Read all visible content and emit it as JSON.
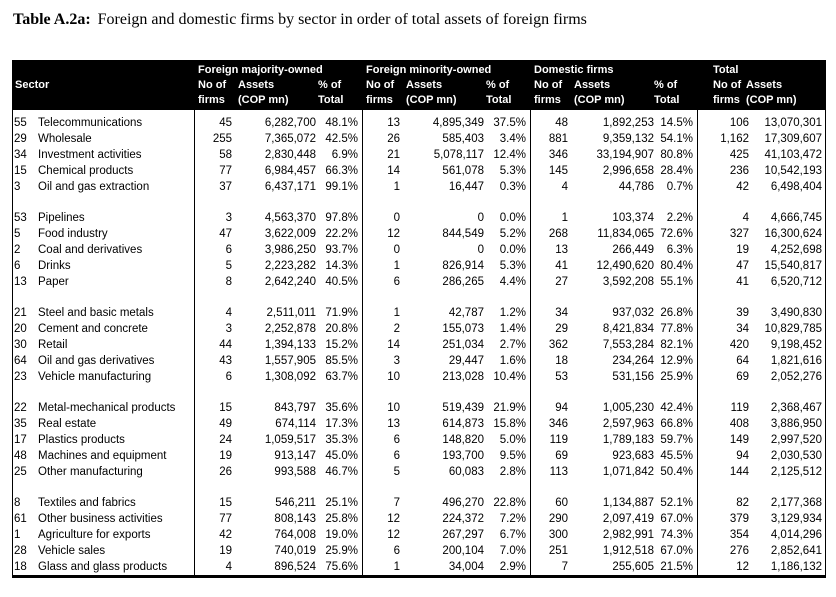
{
  "title": {
    "prefix": "Table A.2a:",
    "text": "Foreign and domestic firms by sector in order of total assets of foreign firms"
  },
  "colors": {
    "header_bg": "#000000",
    "header_text": "#ffffff",
    "body_text": "#000000",
    "background": "#ffffff"
  },
  "table": {
    "header": {
      "sector": "Sector",
      "group_titles": [
        "Foreign majority-owned",
        "Foreign minority-owned",
        "Domestic firms",
        "Total"
      ],
      "sub_top": [
        "No of",
        "Assets",
        "% of"
      ],
      "sub_bottom": [
        "firms",
        "(COP mn)",
        "Total"
      ]
    },
    "columns": [
      "Sector code",
      "Sector",
      "Foreign majority-owned No of firms",
      "Foreign majority-owned Assets (COP mn)",
      "Foreign majority-owned % of Total",
      "Foreign minority-owned No of firms",
      "Foreign minority-owned Assets (COP mn)",
      "Foreign minority-owned % of Total",
      "Domestic firms No of firms",
      "Domestic firms Assets (COP mn)",
      "Domestic firms % of Total",
      "Total No of firms",
      "Total Assets (COP mn)"
    ],
    "row_groups": [
      [
        [
          "55",
          "Telecommunications",
          "45",
          "6,282,700",
          "48.1%",
          "13",
          "4,895,349",
          "37.5%",
          "48",
          "1,892,253",
          "14.5%",
          "106",
          "13,070,301"
        ],
        [
          "29",
          "Wholesale",
          "255",
          "7,365,072",
          "42.5%",
          "26",
          "585,403",
          "3.4%",
          "881",
          "9,359,132",
          "54.1%",
          "1,162",
          "17,309,607"
        ],
        [
          "34",
          "Investment activities",
          "58",
          "2,830,448",
          "6.9%",
          "21",
          "5,078,117",
          "12.4%",
          "346",
          "33,194,907",
          "80.8%",
          "425",
          "41,103,472"
        ],
        [
          "15",
          "Chemical products",
          "77",
          "6,984,457",
          "66.3%",
          "14",
          "561,078",
          "5.3%",
          "145",
          "2,996,658",
          "28.4%",
          "236",
          "10,542,193"
        ],
        [
          "3",
          "Oil and gas extraction",
          "37",
          "6,437,171",
          "99.1%",
          "1",
          "16,447",
          "0.3%",
          "4",
          "44,786",
          "0.7%",
          "42",
          "6,498,404"
        ]
      ],
      [
        [
          "53",
          "Pipelines",
          "3",
          "4,563,370",
          "97.8%",
          "0",
          "0",
          "0.0%",
          "1",
          "103,374",
          "2.2%",
          "4",
          "4,666,745"
        ],
        [
          "5",
          "Food industry",
          "47",
          "3,622,009",
          "22.2%",
          "12",
          "844,549",
          "5.2%",
          "268",
          "11,834,065",
          "72.6%",
          "327",
          "16,300,624"
        ],
        [
          "2",
          "Coal and derivatives",
          "6",
          "3,986,250",
          "93.7%",
          "0",
          "0",
          "0.0%",
          "13",
          "266,449",
          "6.3%",
          "19",
          "4,252,698"
        ],
        [
          "6",
          "Drinks",
          "5",
          "2,223,282",
          "14.3%",
          "1",
          "826,914",
          "5.3%",
          "41",
          "12,490,620",
          "80.4%",
          "47",
          "15,540,817"
        ],
        [
          "13",
          "Paper",
          "8",
          "2,642,240",
          "40.5%",
          "6",
          "286,265",
          "4.4%",
          "27",
          "3,592,208",
          "55.1%",
          "41",
          "6,520,712"
        ]
      ],
      [
        [
          "21",
          "Steel and basic metals",
          "4",
          "2,511,011",
          "71.9%",
          "1",
          "42,787",
          "1.2%",
          "34",
          "937,032",
          "26.8%",
          "39",
          "3,490,830"
        ],
        [
          "20",
          "Cement and concrete",
          "3",
          "2,252,878",
          "20.8%",
          "2",
          "155,073",
          "1.4%",
          "29",
          "8,421,834",
          "77.8%",
          "34",
          "10,829,785"
        ],
        [
          "30",
          "Retail",
          "44",
          "1,394,133",
          "15.2%",
          "14",
          "251,034",
          "2.7%",
          "362",
          "7,553,284",
          "82.1%",
          "420",
          "9,198,452"
        ],
        [
          "64",
          "Oil and gas derivatives",
          "43",
          "1,557,905",
          "85.5%",
          "3",
          "29,447",
          "1.6%",
          "18",
          "234,264",
          "12.9%",
          "64",
          "1,821,616"
        ],
        [
          "23",
          "Vehicle manufacturing",
          "6",
          "1,308,092",
          "63.7%",
          "10",
          "213,028",
          "10.4%",
          "53",
          "531,156",
          "25.9%",
          "69",
          "2,052,276"
        ]
      ],
      [
        [
          "22",
          "Metal-mechanical products",
          "15",
          "843,797",
          "35.6%",
          "10",
          "519,439",
          "21.9%",
          "94",
          "1,005,230",
          "42.4%",
          "119",
          "2,368,467"
        ],
        [
          "35",
          "Real estate",
          "49",
          "674,114",
          "17.3%",
          "13",
          "614,873",
          "15.8%",
          "346",
          "2,597,963",
          "66.8%",
          "408",
          "3,886,950"
        ],
        [
          "17",
          "Plastics products",
          "24",
          "1,059,517",
          "35.3%",
          "6",
          "148,820",
          "5.0%",
          "119",
          "1,789,183",
          "59.7%",
          "149",
          "2,997,520"
        ],
        [
          "48",
          "Machines and equipment",
          "19",
          "913,147",
          "45.0%",
          "6",
          "193,700",
          "9.5%",
          "69",
          "923,683",
          "45.5%",
          "94",
          "2,030,530"
        ],
        [
          "25",
          "Other manufacturing",
          "26",
          "993,588",
          "46.7%",
          "5",
          "60,083",
          "2.8%",
          "113",
          "1,071,842",
          "50.4%",
          "144",
          "2,125,512"
        ]
      ],
      [
        [
          "8",
          "Textiles and fabrics",
          "15",
          "546,211",
          "25.1%",
          "7",
          "496,270",
          "22.8%",
          "60",
          "1,134,887",
          "52.1%",
          "82",
          "2,177,368"
        ],
        [
          "61",
          "Other business activities",
          "77",
          "808,143",
          "25.8%",
          "12",
          "224,372",
          "7.2%",
          "290",
          "2,097,419",
          "67.0%",
          "379",
          "3,129,934"
        ],
        [
          "1",
          "Agriculture for exports",
          "42",
          "764,008",
          "19.0%",
          "12",
          "267,297",
          "6.7%",
          "300",
          "2,982,991",
          "74.3%",
          "354",
          "4,014,296"
        ],
        [
          "28",
          "Vehicle sales",
          "19",
          "740,019",
          "25.9%",
          "6",
          "200,104",
          "7.0%",
          "251",
          "1,912,518",
          "67.0%",
          "276",
          "2,852,641"
        ],
        [
          "18",
          "Glass and glass products",
          "4",
          "896,524",
          "75.6%",
          "1",
          "34,004",
          "2.9%",
          "7",
          "255,605",
          "21.5%",
          "12",
          "1,186,132"
        ]
      ]
    ]
  }
}
